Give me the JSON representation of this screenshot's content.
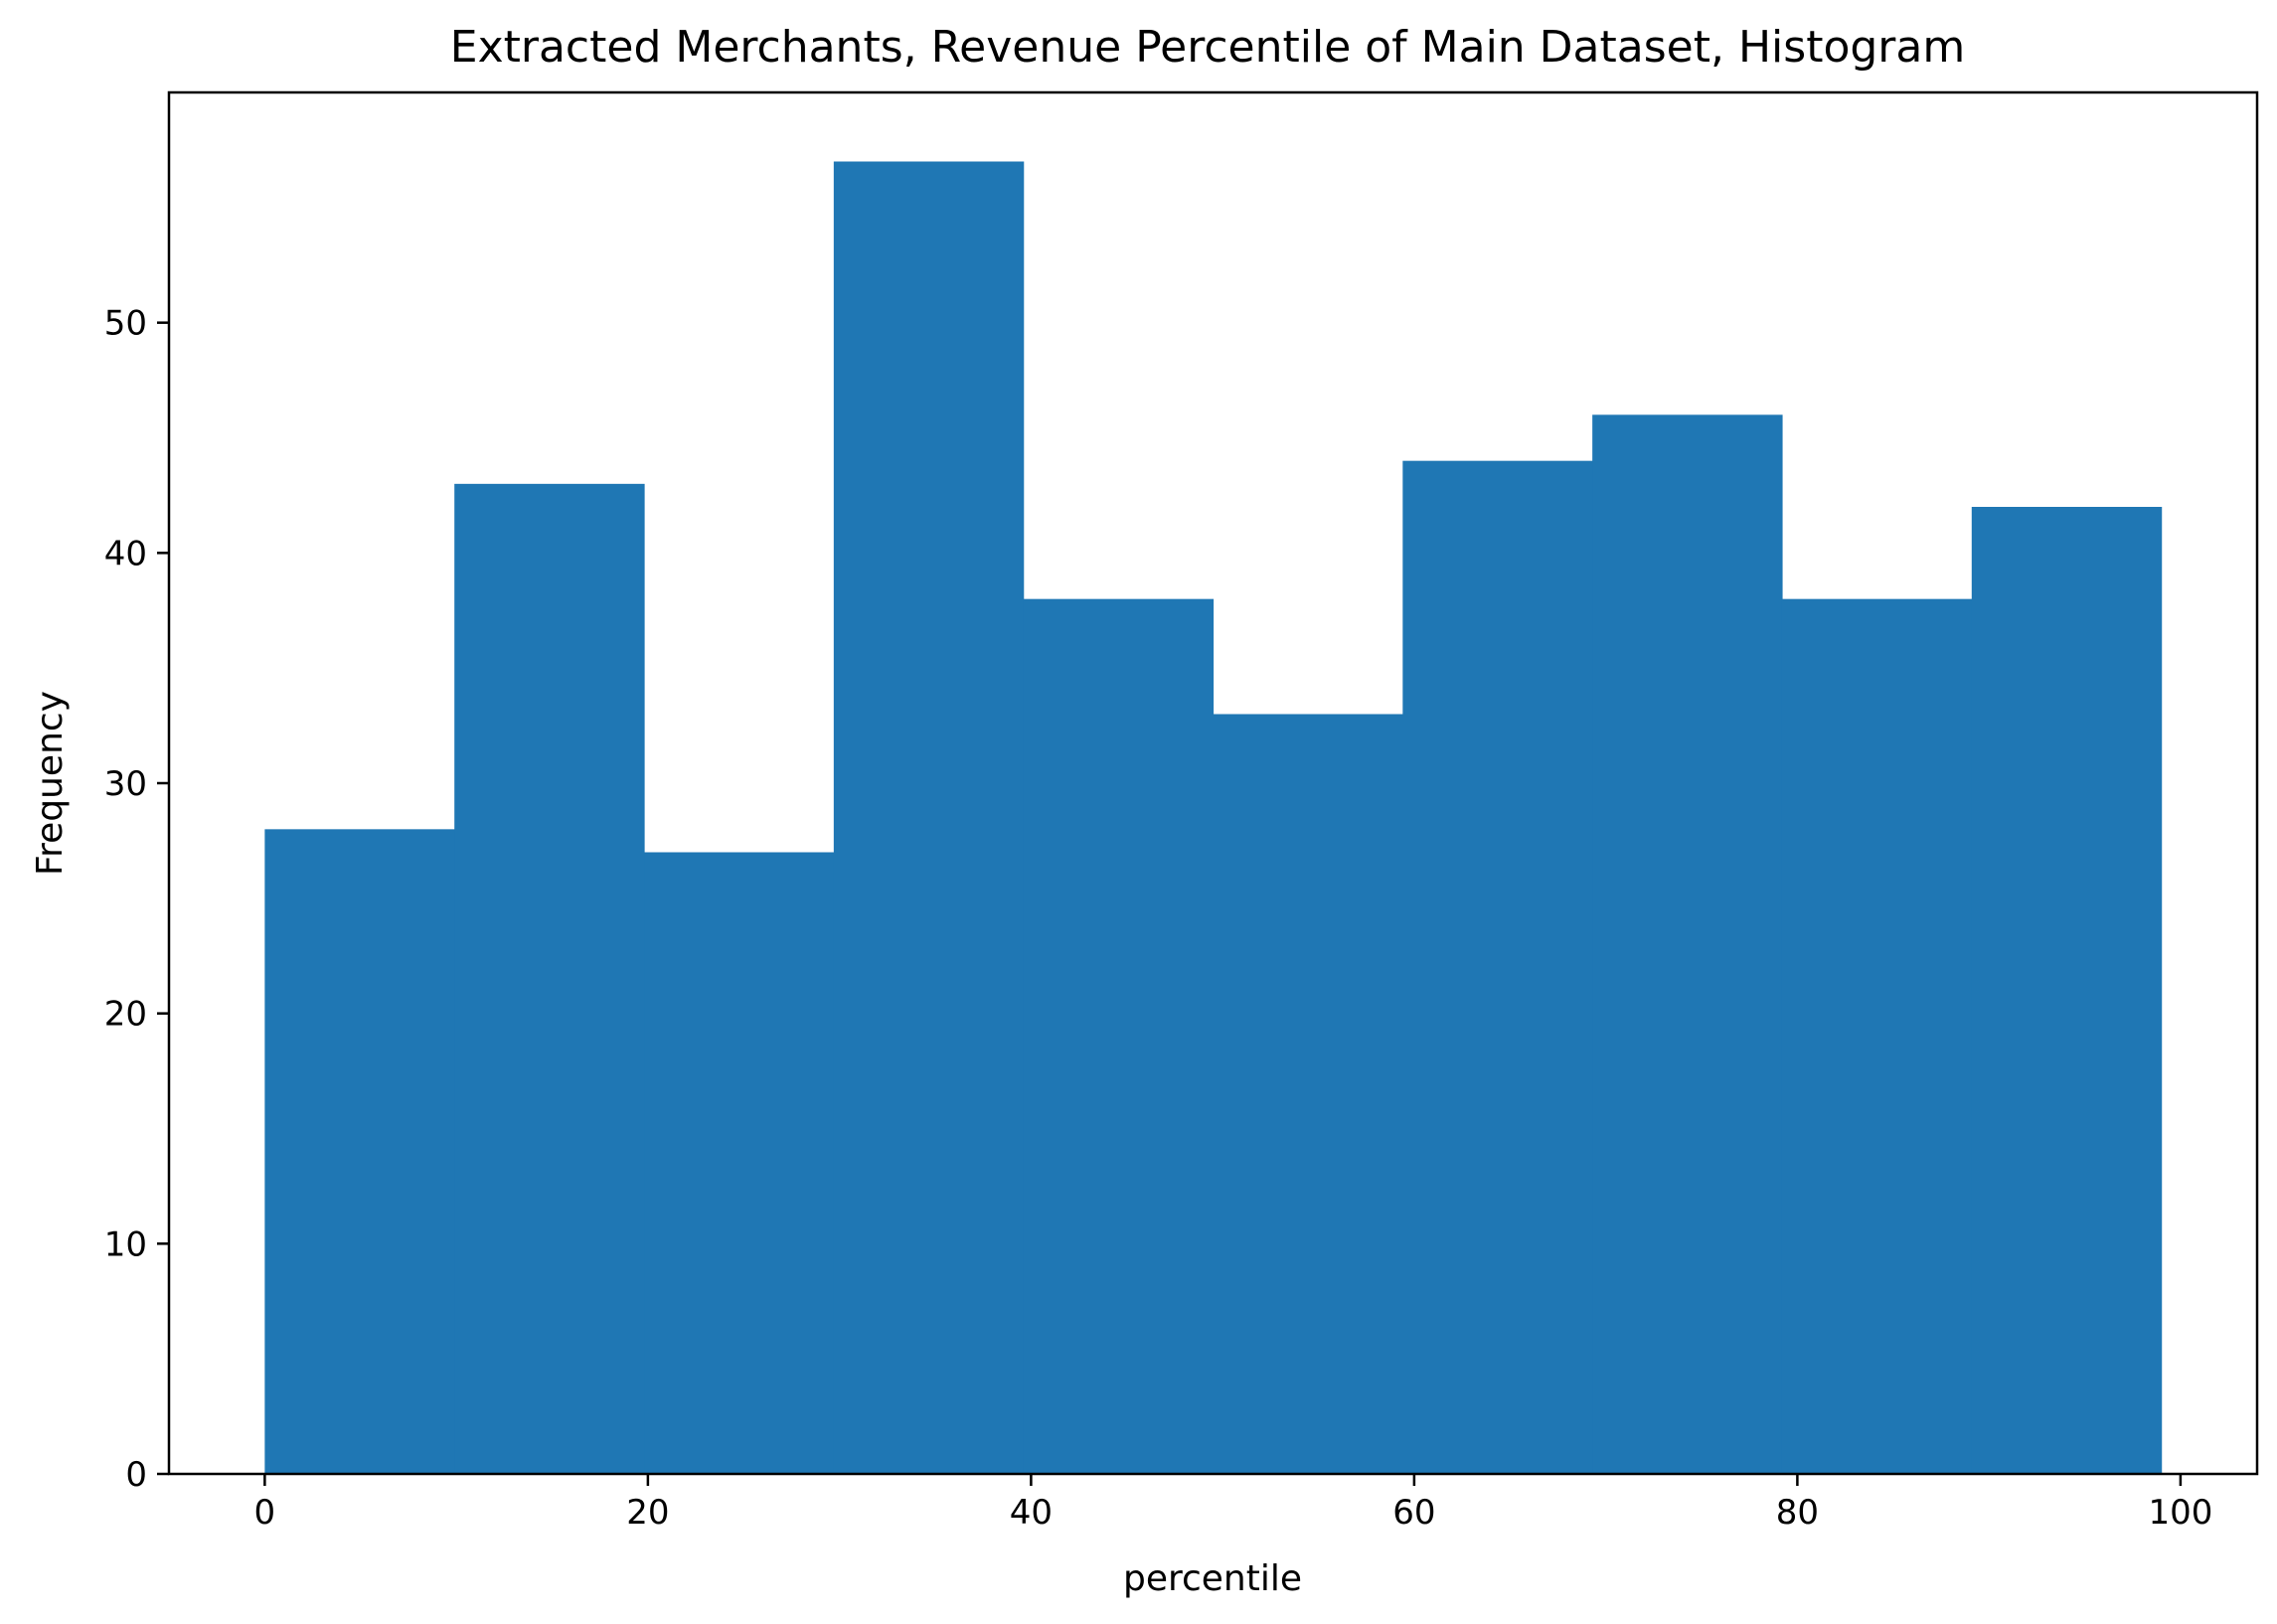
{
  "chart_data": {
    "type": "bar",
    "subtype": "histogram",
    "title": "Extracted Merchants, Revenue Percentile of Main Dataset, Histogram",
    "xlabel": "percentile",
    "ylabel": "Frequency",
    "xlim": [
      -5,
      104
    ],
    "ylim": [
      0,
      60
    ],
    "xticks": [
      0,
      20,
      40,
      60,
      80,
      100
    ],
    "yticks": [
      0,
      10,
      20,
      30,
      40,
      50
    ],
    "bins": [
      {
        "start": 0,
        "end": 9.9,
        "count": 28
      },
      {
        "start": 9.9,
        "end": 19.8,
        "count": 43
      },
      {
        "start": 19.8,
        "end": 29.7,
        "count": 27
      },
      {
        "start": 29.7,
        "end": 39.6,
        "count": 57
      },
      {
        "start": 39.6,
        "end": 49.5,
        "count": 38
      },
      {
        "start": 49.5,
        "end": 59.4,
        "count": 33
      },
      {
        "start": 59.4,
        "end": 69.3,
        "count": 44
      },
      {
        "start": 69.3,
        "end": 79.2,
        "count": 46
      },
      {
        "start": 79.2,
        "end": 89.1,
        "count": 38
      },
      {
        "start": 89.1,
        "end": 99,
        "count": 42
      }
    ],
    "bar_color": "#1f77b4",
    "grid": false,
    "legend": false
  }
}
